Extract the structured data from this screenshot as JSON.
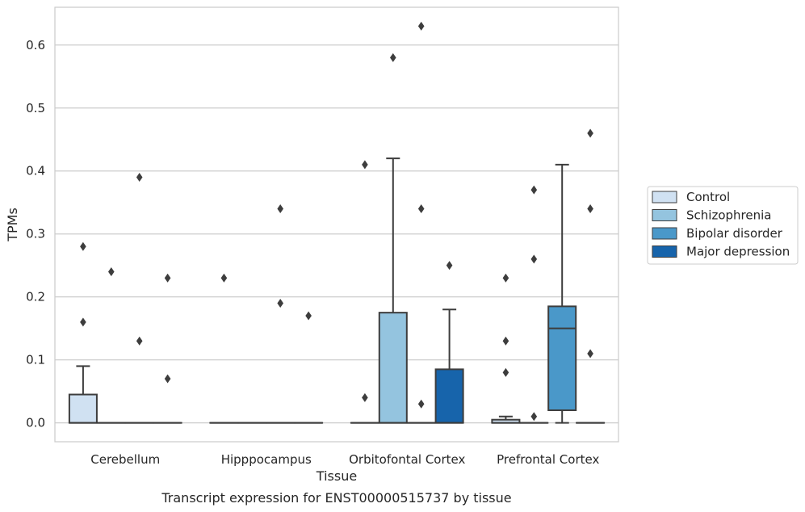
{
  "caption": "Transcript expression for ENST00000515737 by tissue",
  "chart_data": {
    "type": "box",
    "xlabel": "Tissue",
    "ylabel": "TPMs",
    "ylim": [
      -0.03,
      0.66
    ],
    "yticks": [
      "0.0",
      "0.1",
      "0.2",
      "0.3",
      "0.4",
      "0.5",
      "0.6"
    ],
    "ytick_values": [
      0.0,
      0.1,
      0.2,
      0.3,
      0.4,
      0.5,
      0.6
    ],
    "grid": "horizontal",
    "legend_position": "right",
    "categories": [
      "Cerebellum",
      "Hipppocampus",
      "Orbitofontal Cortex",
      "Prefrontal Cortex"
    ],
    "series": [
      {
        "name": "Control",
        "color": "#d0e1f2",
        "boxes": [
          {
            "q1": 0.0,
            "median": 0.0,
            "q3": 0.045,
            "whisker_low": 0.0,
            "whisker_high": 0.09,
            "outliers": [
              0.16,
              0.28
            ]
          },
          {
            "q1": 0.0,
            "median": 0.0,
            "q3": 0.0,
            "whisker_low": 0.0,
            "whisker_high": 0.0,
            "outliers": [
              0.23
            ]
          },
          {
            "q1": 0.0,
            "median": 0.0,
            "q3": 0.0,
            "whisker_low": 0.0,
            "whisker_high": 0.0,
            "outliers": [
              0.04,
              0.41
            ]
          },
          {
            "q1": 0.0,
            "median": 0.0,
            "q3": 0.005,
            "whisker_low": 0.0,
            "whisker_high": 0.01,
            "outliers": [
              0.08,
              0.13,
              0.23
            ]
          }
        ]
      },
      {
        "name": "Schizophrenia",
        "color": "#94c4df",
        "boxes": [
          {
            "q1": 0.0,
            "median": 0.0,
            "q3": 0.0,
            "whisker_low": 0.0,
            "whisker_high": 0.0,
            "outliers": [
              0.24
            ]
          },
          {
            "q1": 0.0,
            "median": 0.0,
            "q3": 0.0,
            "whisker_low": 0.0,
            "whisker_high": 0.0,
            "outliers": []
          },
          {
            "q1": 0.0,
            "median": 0.0,
            "q3": 0.175,
            "whisker_low": 0.0,
            "whisker_high": 0.42,
            "outliers": [
              0.58
            ]
          },
          {
            "q1": 0.0,
            "median": 0.0,
            "q3": 0.0,
            "whisker_low": 0.0,
            "whisker_high": 0.0,
            "outliers": [
              0.01,
              0.26,
              0.37
            ]
          }
        ]
      },
      {
        "name": "Bipolar disorder",
        "color": "#4a98c9",
        "boxes": [
          {
            "q1": 0.0,
            "median": 0.0,
            "q3": 0.0,
            "whisker_low": 0.0,
            "whisker_high": 0.0,
            "outliers": [
              0.13,
              0.39
            ]
          },
          {
            "q1": 0.0,
            "median": 0.0,
            "q3": 0.0,
            "whisker_low": 0.0,
            "whisker_high": 0.0,
            "outliers": [
              0.19,
              0.34
            ]
          },
          {
            "q1": 0.0,
            "median": 0.0,
            "q3": 0.0,
            "whisker_low": 0.0,
            "whisker_high": 0.0,
            "outliers": [
              0.03,
              0.34,
              0.63
            ]
          },
          {
            "q1": 0.02,
            "median": 0.15,
            "q3": 0.185,
            "whisker_low": 0.0,
            "whisker_high": 0.41,
            "outliers": []
          }
        ]
      },
      {
        "name": "Major depression",
        "color": "#1764ab",
        "boxes": [
          {
            "q1": 0.0,
            "median": 0.0,
            "q3": 0.0,
            "whisker_low": 0.0,
            "whisker_high": 0.0,
            "outliers": [
              0.07,
              0.23
            ]
          },
          {
            "q1": 0.0,
            "median": 0.0,
            "q3": 0.0,
            "whisker_low": 0.0,
            "whisker_high": 0.0,
            "outliers": [
              0.17
            ]
          },
          {
            "q1": 0.0,
            "median": 0.0,
            "q3": 0.085,
            "whisker_low": 0.0,
            "whisker_high": 0.18,
            "outliers": [
              0.25
            ]
          },
          {
            "q1": 0.0,
            "median": 0.0,
            "q3": 0.0,
            "whisker_low": 0.0,
            "whisker_high": 0.0,
            "outliers": [
              0.11,
              0.34,
              0.46
            ]
          }
        ]
      }
    ]
  }
}
